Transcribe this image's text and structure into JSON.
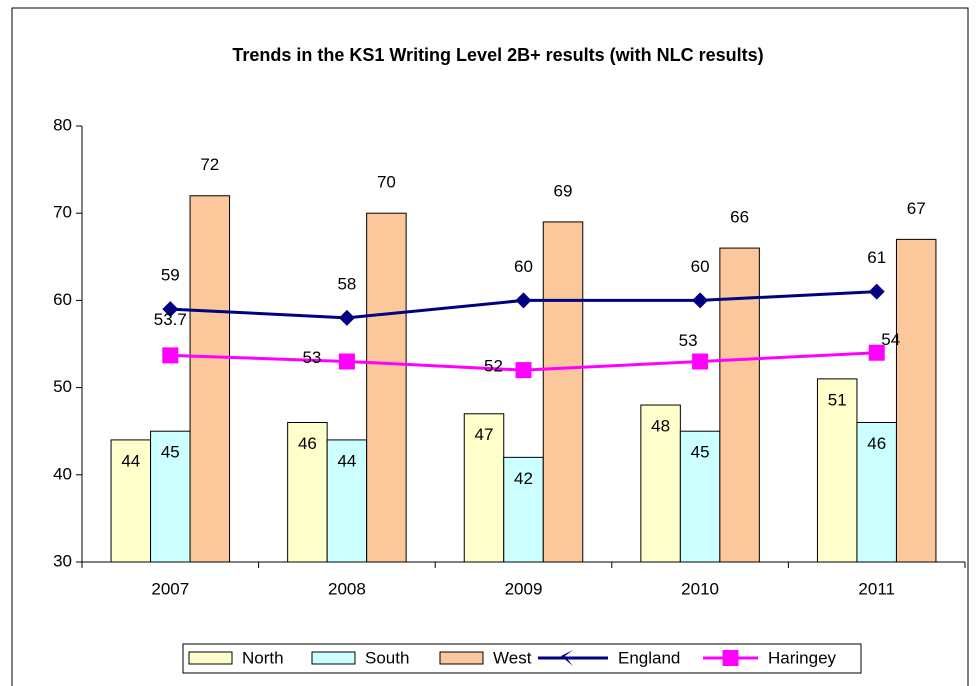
{
  "chart_data": {
    "type": "bar",
    "title": "Trends in the KS1 Writing  Level 2B+ results (with NLC results)",
    "categories": [
      "2007",
      "2008",
      "2009",
      "2010",
      "2011"
    ],
    "series": [
      {
        "name": "North",
        "type": "bar",
        "color": "#ffffcc",
        "values": [
          44,
          46,
          47,
          48,
          51
        ]
      },
      {
        "name": "South",
        "type": "bar",
        "color": "#ccffff",
        "values": [
          45,
          44,
          42,
          45,
          46
        ]
      },
      {
        "name": "West",
        "type": "bar",
        "color": "#fcc79a",
        "values": [
          72,
          70,
          69,
          66,
          67
        ]
      },
      {
        "name": "England",
        "type": "line",
        "color": "#000080",
        "marker": "diamond",
        "values": [
          59,
          58,
          60,
          60,
          61
        ]
      },
      {
        "name": "Haringey",
        "type": "line",
        "color": "#ff00ff",
        "marker": "square",
        "values": [
          53.7,
          53,
          52,
          53,
          54
        ]
      }
    ],
    "ylim": [
      30,
      80
    ],
    "yticks": [
      30,
      40,
      50,
      60,
      70,
      80
    ],
    "grid": false,
    "legend": "bottom"
  }
}
